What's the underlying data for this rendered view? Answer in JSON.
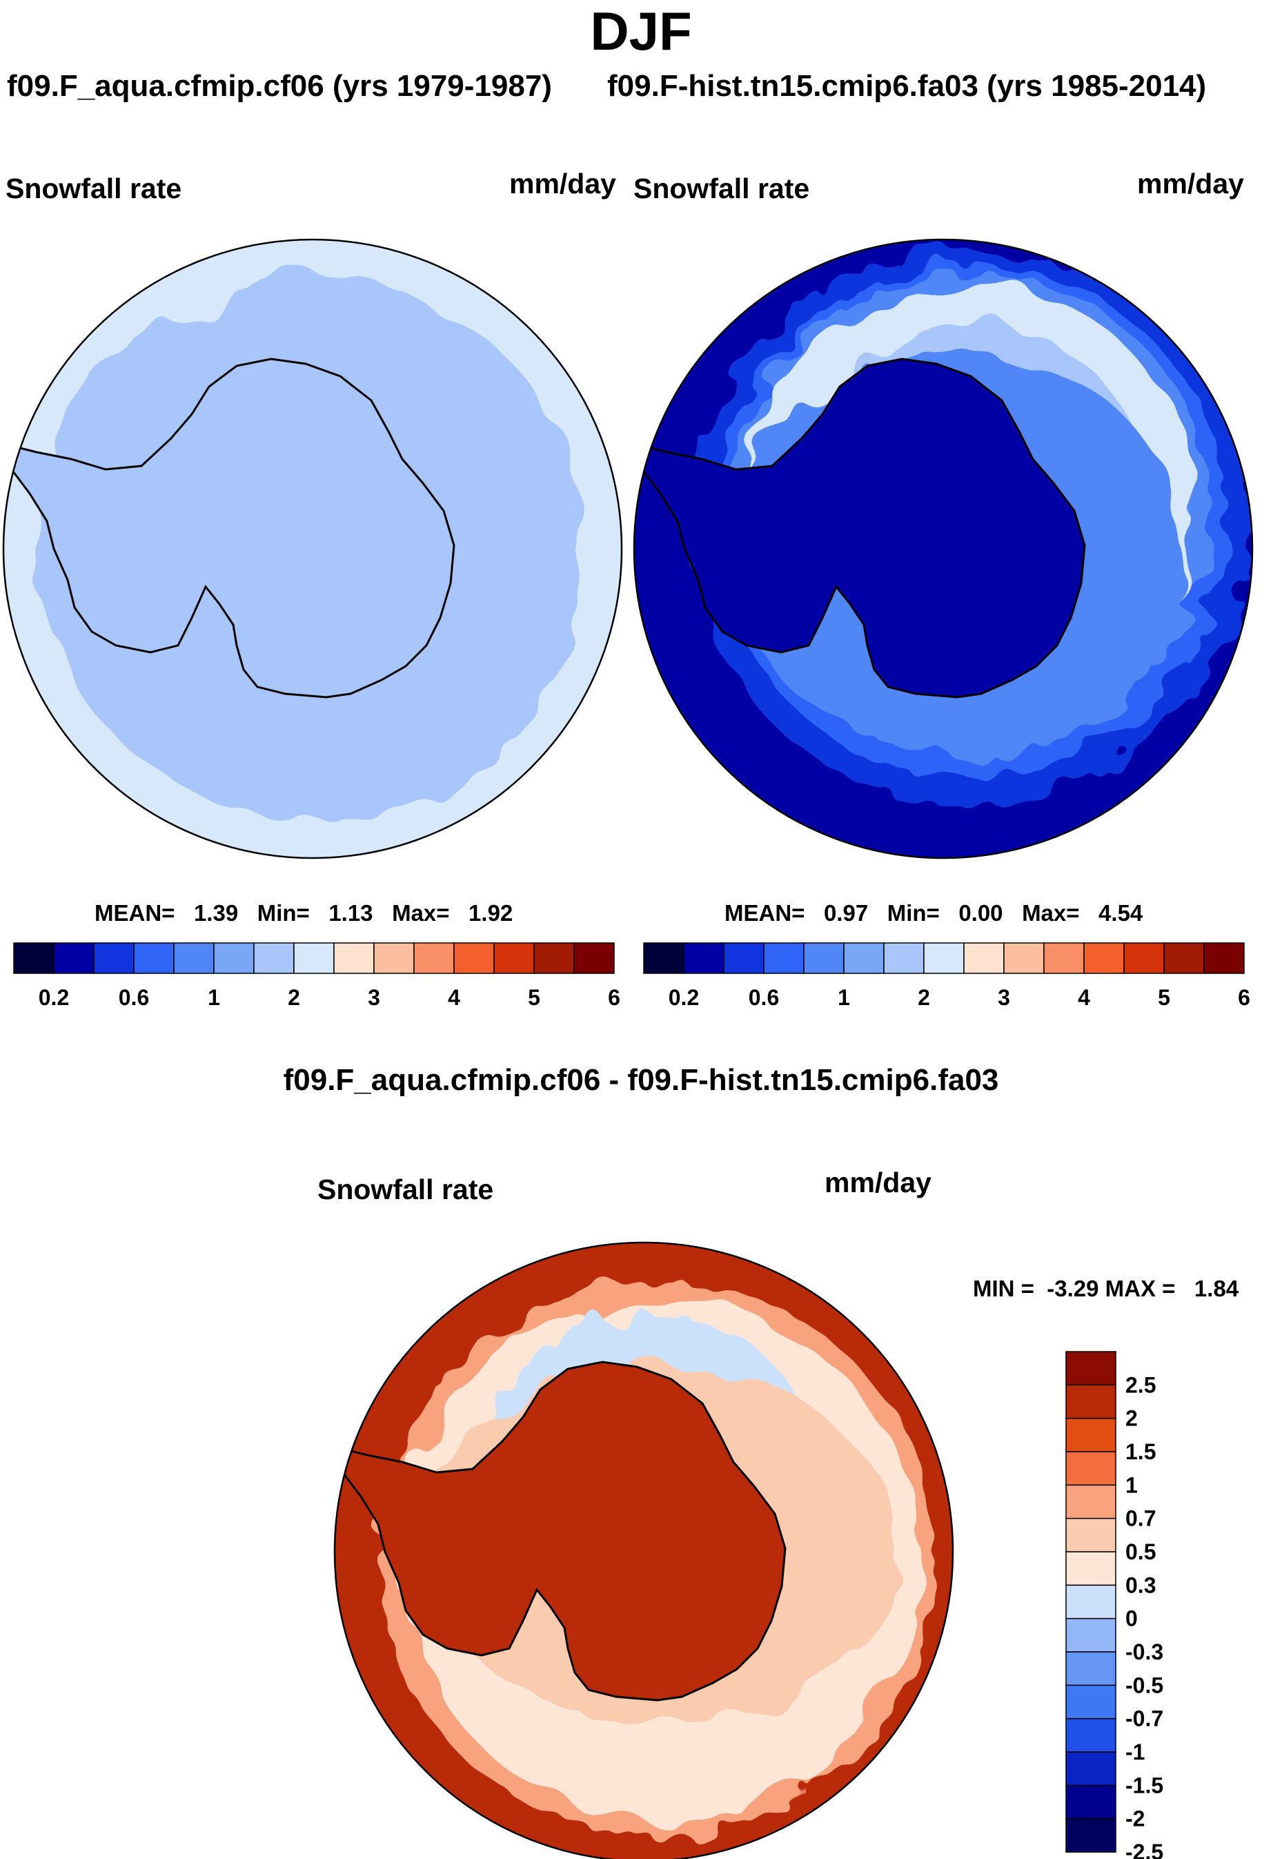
{
  "title": "DJF",
  "chart_data": [
    {
      "type": "heatmap",
      "projection": "south-polar-stereographic",
      "case_title": "f09.F_aqua.cfmip.cf06 (yrs 1979-1987)",
      "variable": "Snowfall rate",
      "units": "mm/day",
      "stats": {
        "mean_label": "MEAN=",
        "mean": "1.39",
        "min_label": "Min=",
        "min": "1.13",
        "max_label": "Max=",
        "max": "1.92"
      },
      "colorbar": {
        "orientation": "horizontal",
        "levels": [
          0.2,
          0.4,
          0.6,
          0.8,
          1,
          1.5,
          2,
          2.5,
          3,
          3.5,
          4,
          4.5,
          5,
          5.5,
          6
        ],
        "tick_labels": [
          "0.2",
          "0.6",
          "1",
          "2",
          "3",
          "4",
          "5",
          "6"
        ]
      },
      "field_description": {
        "ocean_bins": [
          1.5,
          2
        ],
        "continent_bin": 1.5
      }
    },
    {
      "type": "heatmap",
      "projection": "south-polar-stereographic",
      "case_title": "f09.F-hist.tn15.cmip6.fa03 (yrs 1985-2014)",
      "variable": "Snowfall rate",
      "units": "mm/day",
      "stats": {
        "mean_label": "MEAN=",
        "mean": "0.97",
        "min_label": "Min=",
        "min": "0.00",
        "max_label": "Max=",
        "max": "4.54"
      },
      "colorbar": {
        "orientation": "horizontal",
        "levels": [
          0.2,
          0.4,
          0.6,
          0.8,
          1,
          1.5,
          2,
          2.5,
          3,
          3.5,
          4,
          4.5,
          5,
          5.5,
          6
        ],
        "tick_labels": [
          "0.2",
          "0.6",
          "1",
          "2",
          "3",
          "4",
          "5",
          "6"
        ]
      },
      "field_description": {
        "outer_ring_bins": [
          0.2,
          0.4,
          0.6,
          0.8
        ],
        "ocean_bins": [
          1.5,
          2
        ],
        "continent_bin": 0.2
      }
    },
    {
      "type": "heatmap",
      "projection": "south-polar-stereographic",
      "case_title": "f09.F_aqua.cfmip.cf06 - f09.F-hist.tn15.cmip6.fa03",
      "variable": "Snowfall rate",
      "units": "mm/day",
      "stats": {
        "label": "MIN =  -3.29 MAX =   1.84",
        "min": -3.29,
        "max": 1.84
      },
      "colorbar": {
        "orientation": "vertical",
        "levels": [
          -2.5,
          -2,
          -1.5,
          -1,
          -0.7,
          -0.5,
          -0.3,
          0,
          0.3,
          0.5,
          0.7,
          1,
          1.5,
          2,
          2.5
        ],
        "tick_labels": [
          "2.5",
          "2",
          "1.5",
          "1",
          "0.7",
          "0.5",
          "0.3",
          "0",
          "-0.3",
          "-0.5",
          "-0.7",
          "-1",
          "-1.5",
          "-2",
          "-2.5"
        ]
      },
      "field_description": {
        "outer_ring_bin": 1.5,
        "ocean_bins": [
          0,
          -0.3
        ],
        "continent_bin": 1.5
      }
    }
  ],
  "colors": {
    "ramp": [
      "#00003a",
      "#0000a5",
      "#1034de",
      "#2f64f7",
      "#5186f7",
      "#7aa6f7",
      "#a8c6f9",
      "#d8e8fb",
      "#fde2d0",
      "#fbbf9f",
      "#f99068",
      "#f35f2d",
      "#d5340a",
      "#a21c05",
      "#7a0000"
    ],
    "diff_ramp": [
      "#000060",
      "#00008e",
      "#0a25c4",
      "#2050e8",
      "#3e78f2",
      "#6596f5",
      "#93b6f8",
      "#cbe0fb",
      "#fde6d6",
      "#fbcbb0",
      "#f8a37e",
      "#f46f40",
      "#e24d14",
      "#b92a08",
      "#8c0b03"
    ],
    "coast": "#000000"
  }
}
